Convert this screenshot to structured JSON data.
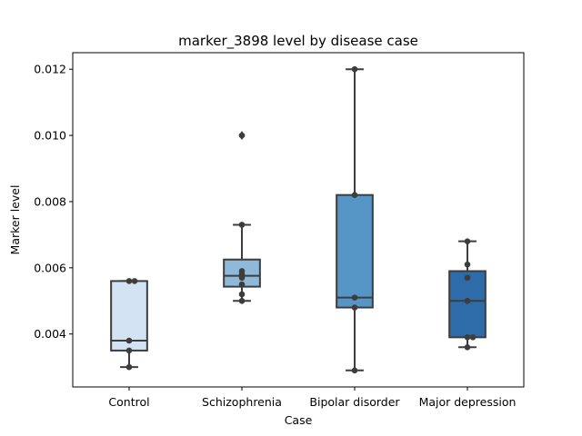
{
  "chart_data": {
    "type": "box",
    "title": "marker_3898 level by disease case",
    "xlabel": "Case",
    "ylabel": "Marker level",
    "ylim": [
      0.0024,
      0.0125
    ],
    "yticks": [
      "0.004",
      "0.006",
      "0.008",
      "0.010",
      "0.012"
    ],
    "ytick_values": [
      0.004,
      0.006,
      0.008,
      0.01,
      0.012
    ],
    "categories": [
      "Control",
      "Schizophrenia",
      "Bipolar disorder",
      "Major depression"
    ],
    "box_colors": [
      "#d3e3f3",
      "#8fb9d9",
      "#5596c6",
      "#2d6ca8"
    ],
    "edge_color": "#3d3d3d",
    "grid": false,
    "boxes": [
      {
        "category": "Control",
        "whisker_low": 0.003,
        "q1": 0.0035,
        "median": 0.0038,
        "q3": 0.0056,
        "whisker_high": 0.0056,
        "outliers": [],
        "points": [
          0.0056,
          0.0056,
          0.0038,
          0.0035,
          0.003
        ]
      },
      {
        "category": "Schizophrenia",
        "whisker_low": 0.005,
        "q1": 0.00543,
        "median": 0.00576,
        "q3": 0.00625,
        "whisker_high": 0.0073,
        "outliers": [
          0.01
        ],
        "points": [
          0.01,
          0.0073,
          0.0059,
          0.0058,
          0.0057,
          0.0055,
          0.0052,
          0.005
        ]
      },
      {
        "category": "Bipolar disorder",
        "whisker_low": 0.0029,
        "q1": 0.0048,
        "median": 0.0051,
        "q3": 0.0082,
        "whisker_high": 0.012,
        "outliers": [],
        "points": [
          0.012,
          0.0082,
          0.0051,
          0.0048,
          0.0029
        ]
      },
      {
        "category": "Major depression",
        "whisker_low": 0.0036,
        "q1": 0.0039,
        "median": 0.005,
        "q3": 0.0059,
        "whisker_high": 0.0068,
        "outliers": [],
        "points": [
          0.0068,
          0.0061,
          0.0057,
          0.005,
          0.0039,
          0.0039,
          0.0036
        ]
      }
    ]
  }
}
